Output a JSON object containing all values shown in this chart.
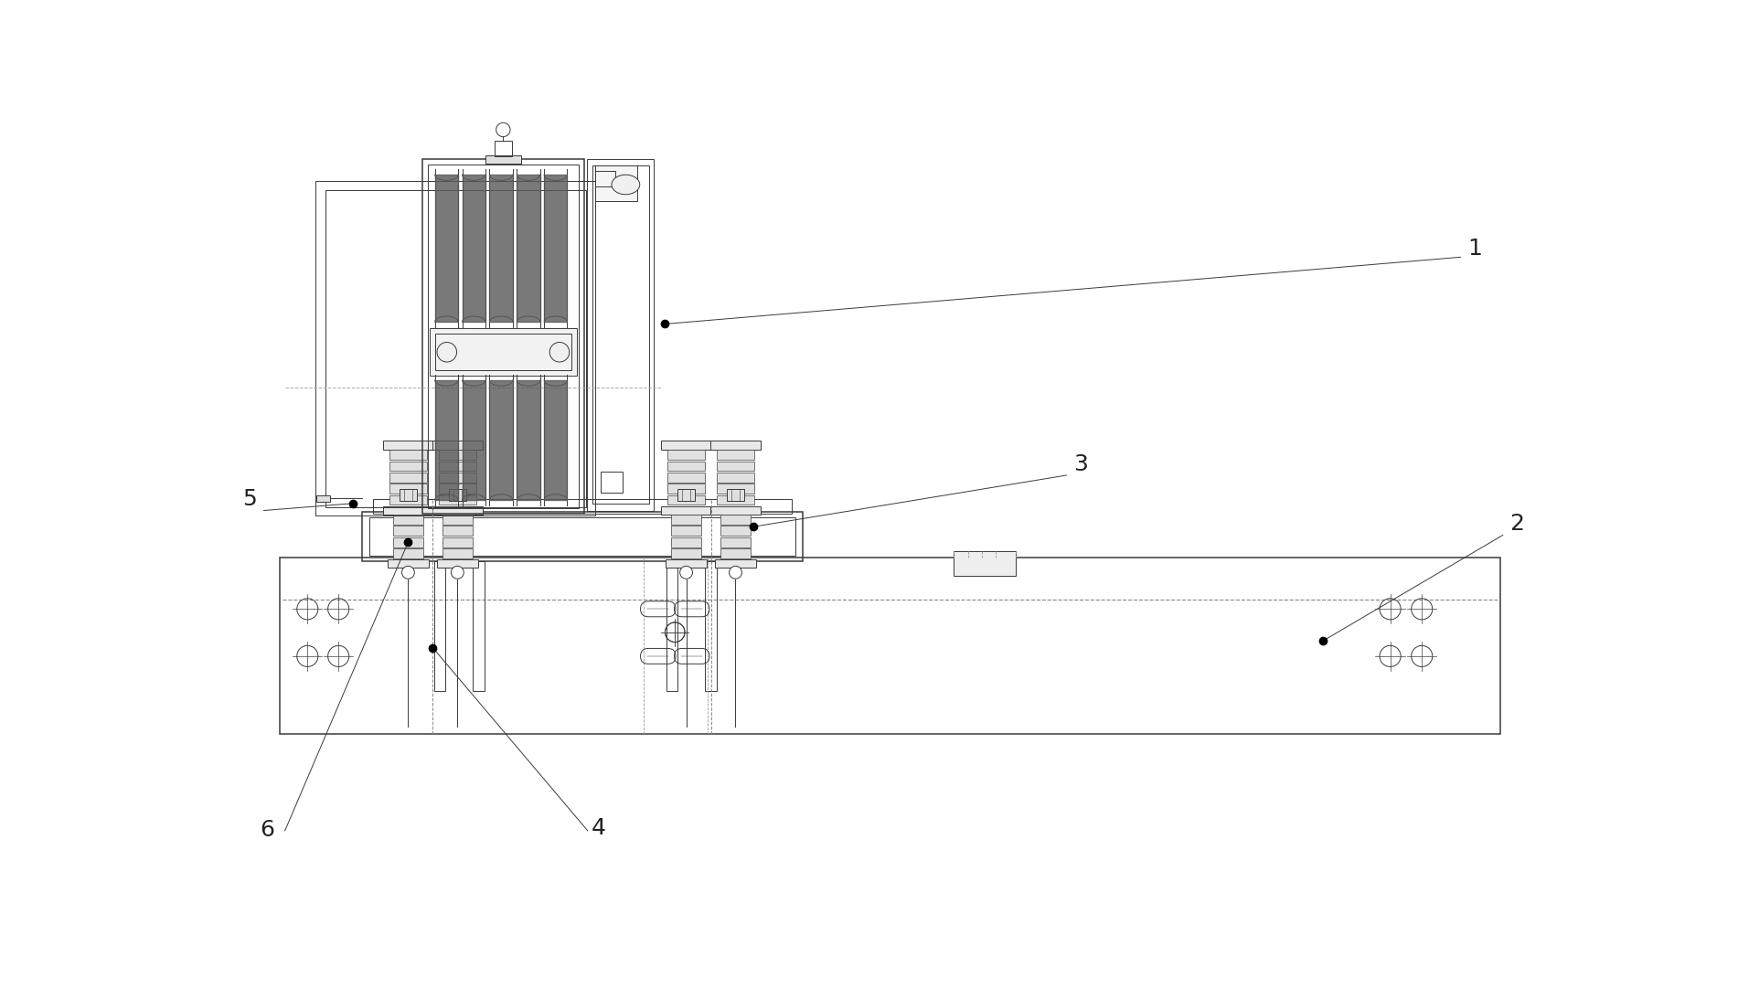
{
  "bg_color": "#ffffff",
  "lc": "#3a3a3a",
  "lw1": 0.7,
  "lw2": 1.1,
  "groove_color": "#606060",
  "fill_light": "#f0f0f0",
  "fill_mid": "#d8d8d8",
  "label_fs": 18,
  "label_color": "#222222"
}
